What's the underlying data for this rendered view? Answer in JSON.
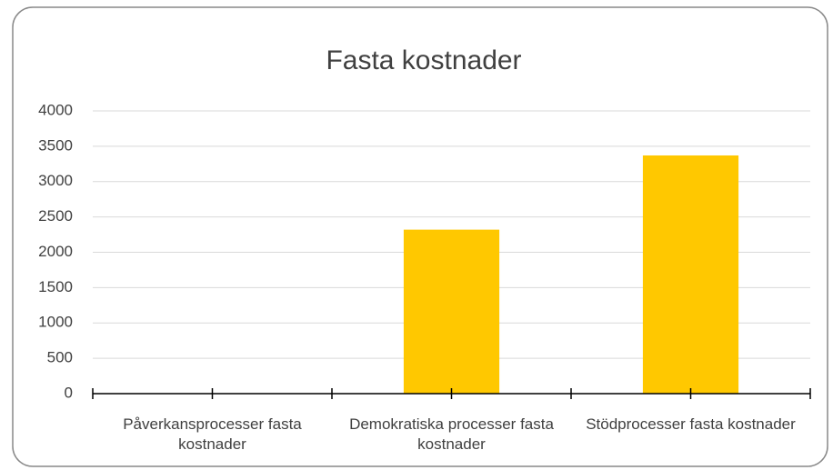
{
  "chart_data": {
    "type": "bar",
    "title": "Fasta kostnader",
    "categories": [
      "Påverkansprocesser fasta kostnader",
      "Demokratiska processer fasta kostnader",
      "Stödprocesser fasta kostnader"
    ],
    "values": [
      0,
      2320,
      3370
    ],
    "color": "#ffc800",
    "ylim": [
      0,
      4000
    ],
    "yticks": [
      0,
      500,
      1000,
      1500,
      2000,
      2500,
      3000,
      3500,
      4000
    ],
    "grid": true
  }
}
